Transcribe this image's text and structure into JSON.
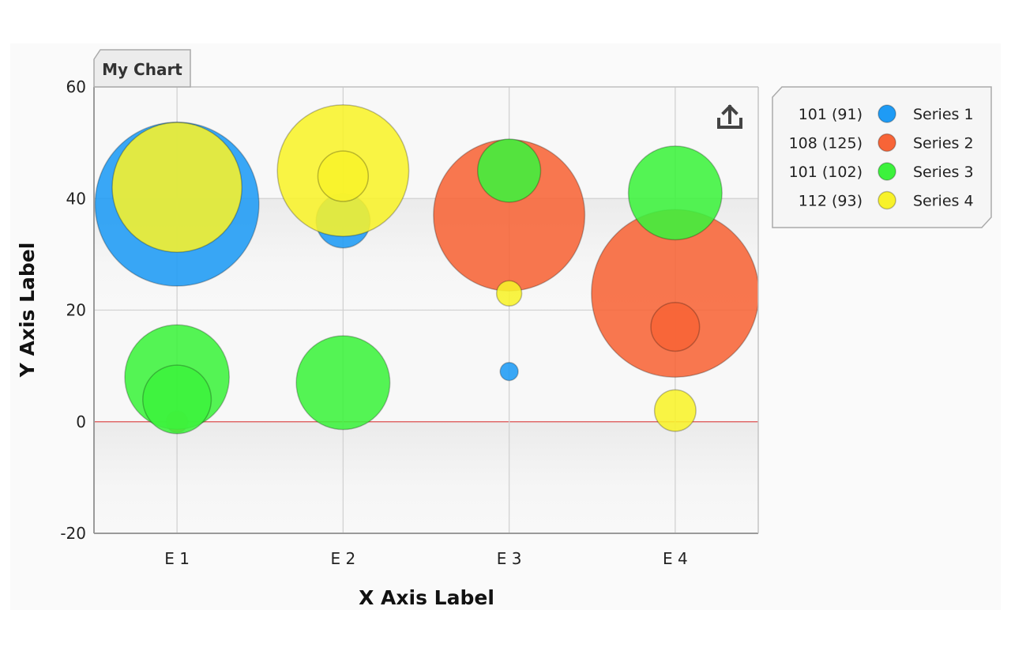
{
  "chart_data": {
    "type": "bubble",
    "title": "My Chart",
    "xlabel": "X Axis Label",
    "ylabel": "Y Axis Label",
    "categories": [
      "E 1",
      "E 2",
      "E 3",
      "E 4"
    ],
    "ylim": [
      -20,
      60
    ],
    "yticks": [
      -20,
      0,
      20,
      40,
      60
    ],
    "grid": true,
    "legend_position": "right",
    "series": [
      {
        "name": "Series 1",
        "color": "#1e9bf5",
        "legend_value": "101 (91)",
        "points": [
          {
            "x": "E 1",
            "y": 39,
            "z": 91
          },
          {
            "x": "E 2",
            "y": 36,
            "z": 30
          },
          {
            "x": "E 3",
            "y": 9,
            "z": 10
          }
        ]
      },
      {
        "name": "Series 2",
        "color": "#f76437",
        "legend_value": "108 (125)",
        "points": [
          {
            "x": "E 1",
            "y": 0,
            "z": 12
          },
          {
            "x": "E 3",
            "y": 37,
            "z": 84
          },
          {
            "x": "E 4",
            "y": 23,
            "z": 93
          },
          {
            "x": "E 4",
            "y": 17,
            "z": 27
          }
        ]
      },
      {
        "name": "Series 3",
        "color": "#3cf23c",
        "legend_value": "101 (102)",
        "points": [
          {
            "x": "E 1",
            "y": 8,
            "z": 58
          },
          {
            "x": "E 1",
            "y": 4,
            "z": 38
          },
          {
            "x": "E 2",
            "y": 7,
            "z": 52
          },
          {
            "x": "E 3",
            "y": 45,
            "z": 35
          },
          {
            "x": "E 4",
            "y": 41,
            "z": 52
          }
        ]
      },
      {
        "name": "Series 4",
        "color": "#f8f22a",
        "legend_value": "112 (93)",
        "points": [
          {
            "x": "E 1",
            "y": 42,
            "z": 72
          },
          {
            "x": "E 2",
            "y": 45,
            "z": 73
          },
          {
            "x": "E 2",
            "y": 44,
            "z": 28
          },
          {
            "x": "E 3",
            "y": 23,
            "z": 14
          },
          {
            "x": "E 4",
            "y": 2,
            "z": 23
          }
        ]
      }
    ]
  },
  "toolbar": {
    "export_icon": "upload-icon"
  }
}
